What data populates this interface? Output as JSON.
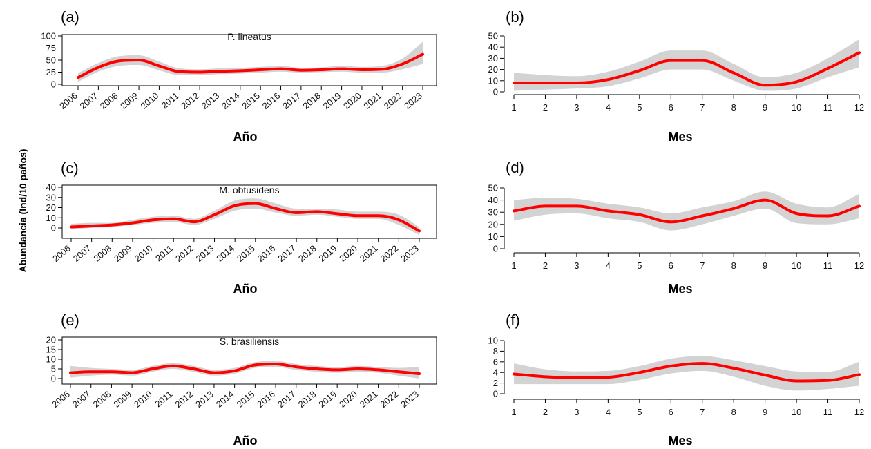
{
  "figure": {
    "ylabel": "Abundancia (Ind/10 paños)",
    "colors": {
      "line": "#ff0000",
      "band": "#d3d3d3",
      "axis": "#000000"
    }
  },
  "chart_data": [
    {
      "type": "line",
      "panel_label": "(a)",
      "title": "P. lineatus",
      "xlabel": "Año",
      "ylabel": "",
      "x": [
        2006,
        2007,
        2008,
        2009,
        2010,
        2011,
        2012,
        2013,
        2014,
        2015,
        2016,
        2017,
        2018,
        2019,
        2020,
        2021,
        2022,
        2023
      ],
      "xticks": [
        "2006",
        "2007",
        "2008",
        "2009",
        "2010",
        "2011",
        "2012",
        "2013",
        "2014",
        "2015",
        "2016",
        "2017",
        "2018",
        "2019",
        "2020",
        "2021",
        "2022",
        "2023"
      ],
      "xlim": [
        2006,
        2023
      ],
      "ylim": [
        0,
        100
      ],
      "yticks": [
        0,
        25,
        50,
        75,
        100
      ],
      "series": [
        {
          "values": [
            14,
            35,
            48,
            50,
            38,
            26,
            25,
            27,
            28,
            30,
            32,
            29,
            30,
            32,
            30,
            31,
            42,
            62
          ]
        }
      ],
      "band": {
        "lower": [
          5,
          26,
          38,
          40,
          29,
          19,
          19,
          21,
          22,
          24,
          26,
          24,
          25,
          26,
          24,
          24,
          31,
          42
        ],
        "upper": [
          23,
          44,
          58,
          60,
          47,
          33,
          31,
          33,
          34,
          36,
          38,
          34,
          35,
          38,
          36,
          38,
          53,
          88
        ]
      }
    },
    {
      "type": "line",
      "panel_label": "(b)",
      "xlabel": "Mes",
      "ylabel": "",
      "x": [
        1,
        2,
        3,
        4,
        5,
        6,
        7,
        8,
        9,
        10,
        11,
        12
      ],
      "xticks": [
        "1",
        "2",
        "3",
        "4",
        "5",
        "6",
        "7",
        "8",
        "9",
        "10",
        "11",
        "12"
      ],
      "xlim": [
        1,
        12
      ],
      "ylim": [
        0,
        50
      ],
      "yticks": [
        0,
        10,
        20,
        30,
        40,
        50
      ],
      "series": [
        {
          "values": [
            8,
            8,
            8,
            11,
            19,
            28,
            28,
            17,
            6,
            9,
            21,
            35
          ]
        }
      ],
      "band": {
        "lower": [
          1,
          2,
          3,
          5,
          12,
          20,
          20,
          10,
          1,
          3,
          13,
          22
        ],
        "upper": [
          17,
          15,
          14,
          18,
          27,
          37,
          37,
          25,
          13,
          17,
          30,
          47
        ]
      }
    },
    {
      "type": "line",
      "panel_label": "(c)",
      "title": "M. obtusidens",
      "xlabel": "Año",
      "ylabel": "",
      "x": [
        2006,
        2007,
        2008,
        2009,
        2010,
        2011,
        2012,
        2013,
        2014,
        2015,
        2016,
        2017,
        2018,
        2019,
        2020,
        2021,
        2022,
        2023
      ],
      "xticks": [
        "2006",
        "2007",
        "2008",
        "2009",
        "2010",
        "2011",
        "2012",
        "2013",
        "2014",
        "2015",
        "2016",
        "2017",
        "2018",
        "2019",
        "2020",
        "2021",
        "2022",
        "2023"
      ],
      "xlim": [
        2006,
        2023
      ],
      "ylim": [
        0,
        40
      ],
      "yticks": [
        0,
        10,
        20,
        30,
        40
      ],
      "series": [
        {
          "values": [
            1,
            2,
            3,
            5,
            8,
            9,
            6,
            13,
            22,
            24,
            19,
            15,
            16,
            14,
            12,
            12,
            8,
            -3
          ]
        }
      ],
      "band": {
        "lower": [
          -1,
          0,
          1,
          3,
          5,
          6,
          3,
          9,
          17,
          19,
          15,
          12,
          13,
          11,
          9,
          9,
          3,
          -7
        ],
        "upper": [
          4,
          5,
          5,
          8,
          11,
          12,
          9,
          17,
          27,
          29,
          24,
          19,
          19,
          18,
          16,
          16,
          13,
          1
        ]
      }
    },
    {
      "type": "line",
      "panel_label": "(d)",
      "xlabel": "Mes",
      "ylabel": "",
      "x": [
        1,
        2,
        3,
        4,
        5,
        6,
        7,
        8,
        9,
        10,
        11,
        12
      ],
      "xticks": [
        "1",
        "2",
        "3",
        "4",
        "5",
        "6",
        "7",
        "8",
        "9",
        "10",
        "11",
        "12"
      ],
      "xlim": [
        1,
        12
      ],
      "ylim": [
        0,
        50
      ],
      "yticks": [
        0,
        10,
        20,
        30,
        40,
        50
      ],
      "series": [
        {
          "values": [
            31,
            35,
            35,
            31,
            28,
            22,
            27,
            33,
            40,
            29,
            27,
            35
          ]
        }
      ],
      "band": {
        "lower": [
          23,
          28,
          29,
          25,
          22,
          15,
          20,
          27,
          33,
          21,
          20,
          25
        ],
        "upper": [
          40,
          42,
          41,
          37,
          34,
          29,
          34,
          39,
          47,
          37,
          34,
          45
        ]
      }
    },
    {
      "type": "line",
      "panel_label": "(e)",
      "title": "S. brasiliensis",
      "xlabel": "Año",
      "ylabel": "",
      "x": [
        2006,
        2007,
        2008,
        2009,
        2010,
        2011,
        2012,
        2013,
        2014,
        2015,
        2016,
        2017,
        2018,
        2019,
        2020,
        2021,
        2022,
        2023
      ],
      "xticks": [
        "2006",
        "2007",
        "2008",
        "2009",
        "2010",
        "2011",
        "2012",
        "2013",
        "2014",
        "2015",
        "2016",
        "2017",
        "2018",
        "2019",
        "2020",
        "2021",
        "2022",
        "2023"
      ],
      "xlim": [
        2006,
        2023
      ],
      "ylim": [
        0,
        20
      ],
      "yticks": [
        0,
        5,
        10,
        15,
        20
      ],
      "series": [
        {
          "values": [
            3,
            3.5,
            3.5,
            3,
            5,
            6.5,
            5,
            3,
            4,
            7,
            7.5,
            6,
            5,
            4.5,
            5,
            4.5,
            3.5,
            2.5
          ]
        }
      ],
      "band": {
        "lower": [
          0.5,
          1.5,
          2,
          1.5,
          3.5,
          5,
          3.5,
          1.5,
          2.5,
          5.5,
          6,
          4.5,
          3.5,
          3,
          3.5,
          3,
          1.5,
          0
        ],
        "upper": [
          6.5,
          5.5,
          5,
          4.5,
          6.5,
          8,
          6.5,
          4.5,
          5.5,
          8.5,
          9,
          7.5,
          6.5,
          6,
          6.5,
          6,
          5.5,
          6
        ]
      }
    },
    {
      "type": "line",
      "panel_label": "(f)",
      "xlabel": "Mes",
      "ylabel": "",
      "x": [
        1,
        2,
        3,
        4,
        5,
        6,
        7,
        8,
        9,
        10,
        11,
        12
      ],
      "xticks": [
        "1",
        "2",
        "3",
        "4",
        "5",
        "6",
        "7",
        "8",
        "9",
        "10",
        "11",
        "12"
      ],
      "xlim": [
        1,
        12
      ],
      "ylim": [
        0,
        10
      ],
      "yticks": [
        0,
        2,
        4,
        6,
        8,
        10
      ],
      "series": [
        {
          "values": [
            3.7,
            3.2,
            3,
            3.1,
            4,
            5.2,
            5.7,
            4.8,
            3.5,
            2.4,
            2.5,
            3.6
          ]
        }
      ],
      "band": {
        "lower": [
          1.8,
          1.8,
          1.8,
          1.8,
          2.6,
          3.8,
          4.3,
          3.2,
          1.5,
          0.6,
          0.9,
          1.5
        ],
        "upper": [
          5.7,
          4.6,
          4.2,
          4.3,
          5.2,
          6.6,
          7.1,
          6.3,
          5.2,
          4.2,
          4.1,
          6
        ]
      }
    }
  ]
}
